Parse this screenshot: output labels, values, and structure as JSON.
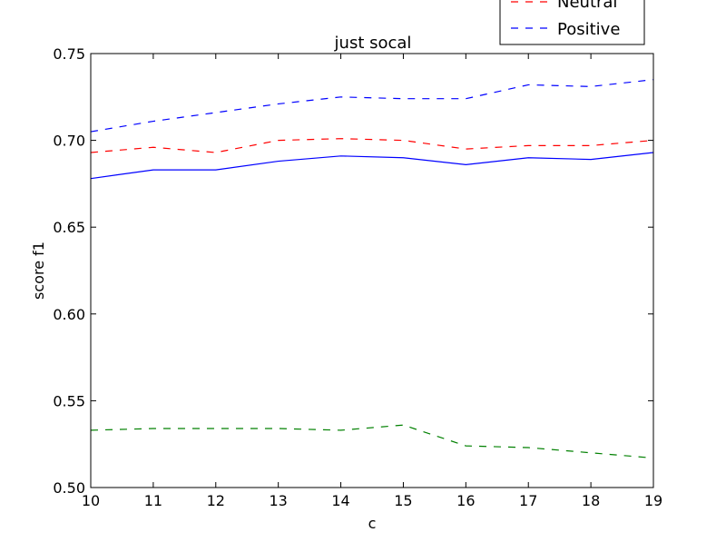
{
  "chart_data": {
    "type": "line",
    "title": "just socal",
    "xlabel": "c",
    "ylabel": "score f1",
    "x": [
      10,
      11,
      12,
      13,
      14,
      15,
      16,
      17,
      18,
      19
    ],
    "xlim": [
      10,
      19
    ],
    "ylim": [
      0.5,
      0.75
    ],
    "xticks": [
      "10",
      "11",
      "12",
      "13",
      "14",
      "15",
      "16",
      "17",
      "18",
      "19"
    ],
    "yticks": [
      "0.50",
      "0.55",
      "0.60",
      "0.65",
      "0.70",
      "0.75"
    ],
    "grid": false,
    "legend_position": "top-right",
    "series": [
      {
        "color": "#0000ff",
        "dash": "solid",
        "values": [
          0.678,
          0.683,
          0.683,
          0.688,
          0.691,
          0.69,
          0.686,
          0.69,
          0.689,
          0.693
        ]
      },
      {
        "color": "#008000",
        "dash": "dashed",
        "values": [
          0.533,
          0.534,
          0.534,
          0.534,
          0.533,
          0.536,
          0.524,
          0.523,
          0.52,
          0.517
        ]
      },
      {
        "name": "Neutral",
        "color": "#ff0000",
        "dash": "dashed",
        "values": [
          0.693,
          0.696,
          0.693,
          0.7,
          0.701,
          0.7,
          0.695,
          0.697,
          0.697,
          0.7
        ]
      },
      {
        "name": "Positive",
        "color": "#0000ff",
        "dash": "dashed",
        "values": [
          0.705,
          0.711,
          0.716,
          0.721,
          0.725,
          0.724,
          0.724,
          0.732,
          0.731,
          0.735
        ]
      }
    ]
  }
}
